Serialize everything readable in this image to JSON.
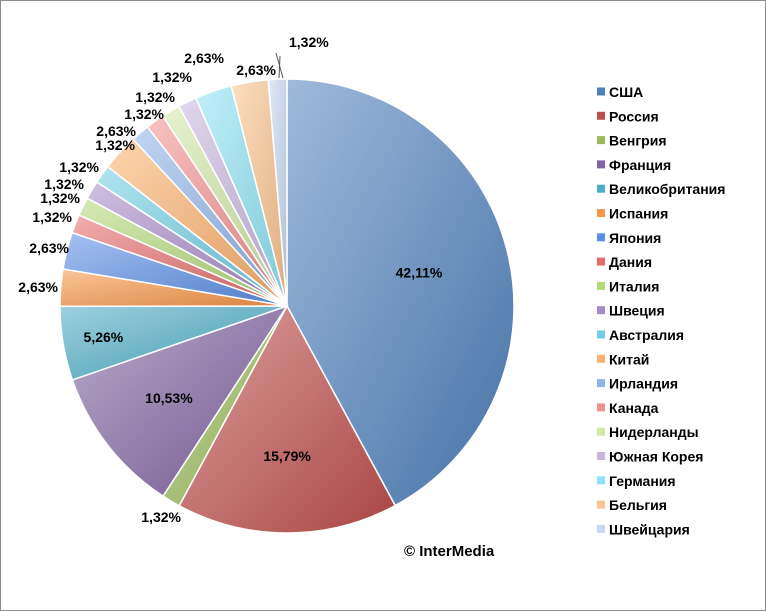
{
  "watermark": "© InterMedia",
  "chart_data": {
    "type": "pie",
    "series": [
      {
        "name": "США",
        "value": 42.11,
        "label": "42,11%",
        "color": "#4f81bd"
      },
      {
        "name": "Россия",
        "value": 15.79,
        "label": "15,79%",
        "color": "#c0504d"
      },
      {
        "name": "Венгрия",
        "value": 1.32,
        "label": "1,32%",
        "color": "#9bbb59"
      },
      {
        "name": "Франция",
        "value": 10.53,
        "label": "10,53%",
        "color": "#8064a2"
      },
      {
        "name": "Великобритания",
        "value": 5.26,
        "label": "5,26%",
        "color": "#4bacc6"
      },
      {
        "name": "Испания",
        "value": 2.63,
        "label": "2,63%",
        "color": "#f79646"
      },
      {
        "name": "Япония",
        "value": 2.63,
        "label": "2,63%",
        "color": "#5b8ee6"
      },
      {
        "name": "Дания",
        "value": 1.32,
        "label": "1,32%",
        "color": "#e46c6a"
      },
      {
        "name": "Италия",
        "value": 1.32,
        "label": "1,32%",
        "color": "#b3d879"
      },
      {
        "name": "Швеция",
        "value": 1.32,
        "label": "1,32%",
        "color": "#a78bc9"
      },
      {
        "name": "Австралия",
        "value": 1.32,
        "label": "1,32%",
        "color": "#6fcde3"
      },
      {
        "name": "Китай",
        "value": 2.63,
        "label": "2,63%",
        "color": "#fbb06c"
      },
      {
        "name": "Ирландия",
        "value": 1.32,
        "label": "1,32%",
        "color": "#8fb3e8"
      },
      {
        "name": "Канада",
        "value": 1.32,
        "label": "1,32%",
        "color": "#f2908e"
      },
      {
        "name": "Нидерланды",
        "value": 1.32,
        "label": "1,32%",
        "color": "#d1e8a6"
      },
      {
        "name": "Южная Корея",
        "value": 1.32,
        "label": "1,32%",
        "color": "#c9b6e0"
      },
      {
        "name": "Германия",
        "value": 2.63,
        "label": "2,63%",
        "color": "#8ee3f5"
      },
      {
        "name": "Бельгия",
        "value": 2.63,
        "label": "2,63%",
        "color": "#fcc48e"
      },
      {
        "name": "Швейцария",
        "value": 1.32,
        "label": "1,32%",
        "color": "#c6d9f1"
      }
    ],
    "legend_position": "right"
  }
}
